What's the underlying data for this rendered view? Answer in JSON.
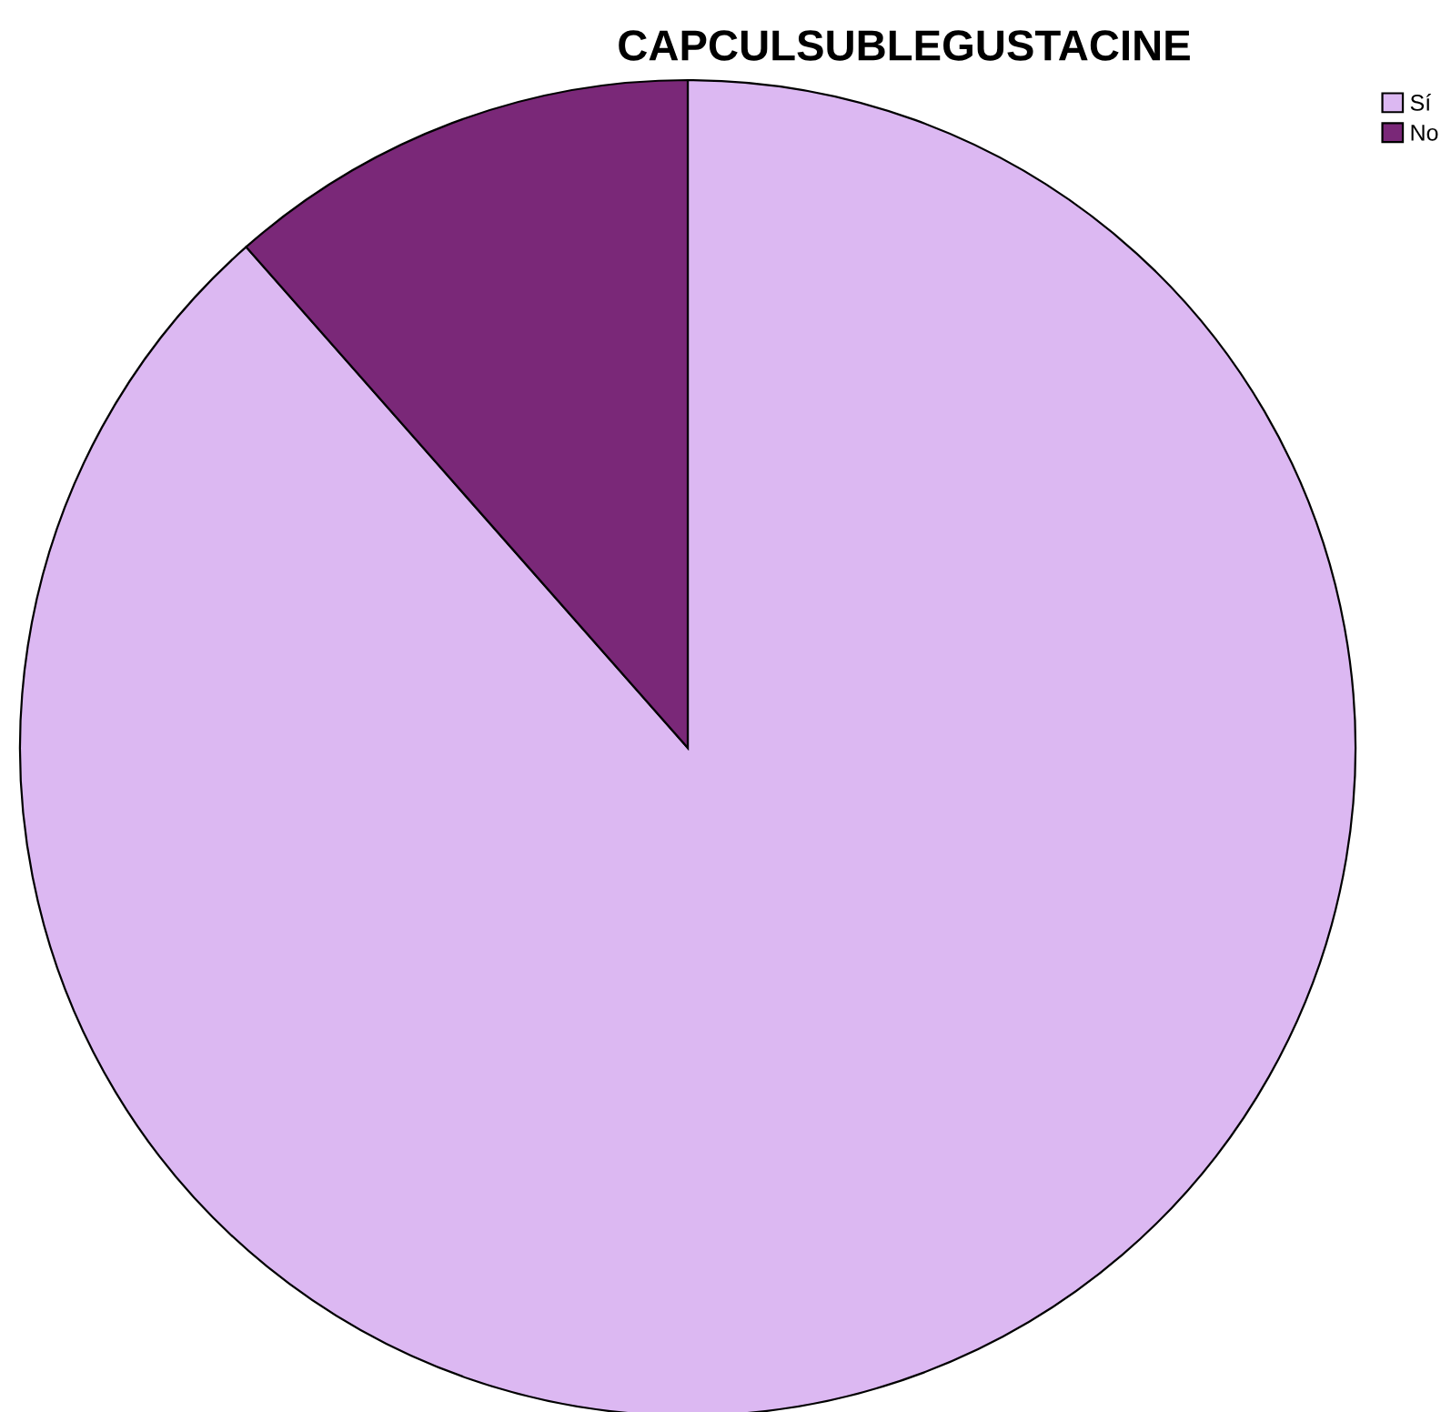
{
  "chart_data": {
    "type": "pie",
    "title": "CAPCULSUBLEGUSTACINE",
    "categories": [
      "Sí",
      "No"
    ],
    "values": [
      88.5,
      11.5
    ],
    "colors": [
      "#dcb8f2",
      "#7a2878"
    ],
    "legend": "top right"
  }
}
